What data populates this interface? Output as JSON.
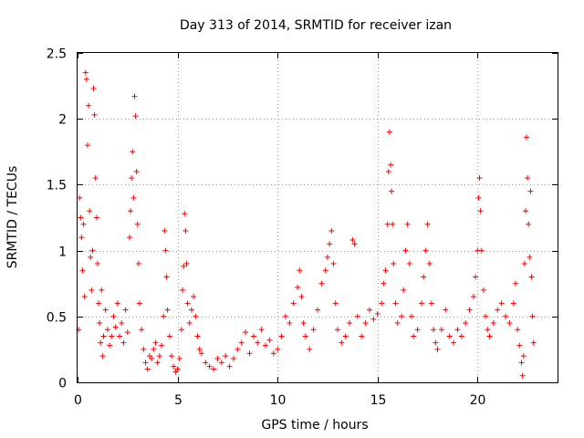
{
  "chart_data": {
    "type": "scatter",
    "title": "Day 313 of 2014, SRMTID for receiver izan",
    "xlabel": "GPS time / hours",
    "ylabel": "SRMTID / TECUs",
    "xlim": [
      0,
      24
    ],
    "ylim": [
      0,
      2.5
    ],
    "x_ticks": [
      0,
      5,
      10,
      15,
      20
    ],
    "y_ticks": [
      0,
      0.5,
      1,
      1.5,
      2,
      2.5
    ],
    "x_tick_labels": [
      "0",
      "5",
      "10",
      "15",
      "20"
    ],
    "y_tick_labels": [
      "0",
      "0.5",
      "1",
      "1.5",
      "2",
      "2.5"
    ],
    "grid": true,
    "marker": "+",
    "color": "#ff0000",
    "series": [
      {
        "name": "SRMTID",
        "points": [
          [
            0.05,
            0.4
          ],
          [
            0.1,
            1.4
          ],
          [
            0.15,
            1.25
          ],
          [
            0.2,
            1.1
          ],
          [
            0.25,
            0.85
          ],
          [
            0.3,
            1.2
          ],
          [
            0.35,
            0.65
          ],
          [
            0.4,
            2.35
          ],
          [
            0.45,
            2.3
          ],
          [
            0.5,
            1.8
          ],
          [
            0.55,
            2.1
          ],
          [
            0.6,
            1.3
          ],
          [
            0.65,
            0.95
          ],
          [
            0.7,
            0.7
          ],
          [
            0.75,
            1.0
          ],
          [
            0.8,
            2.23
          ],
          [
            0.85,
            2.03
          ],
          [
            0.9,
            1.55
          ],
          [
            0.95,
            1.25
          ],
          [
            1.0,
            0.9
          ],
          [
            1.05,
            0.6
          ],
          [
            1.1,
            0.45
          ],
          [
            1.15,
            0.3
          ],
          [
            1.2,
            0.7
          ],
          [
            1.25,
            0.2
          ],
          [
            1.3,
            0.35
          ],
          [
            1.4,
            0.55
          ],
          [
            1.5,
            0.4
          ],
          [
            1.6,
            0.28
          ],
          [
            1.7,
            0.35
          ],
          [
            1.8,
            0.5
          ],
          [
            1.9,
            0.42
          ],
          [
            2.0,
            0.6
          ],
          [
            2.1,
            0.35
          ],
          [
            2.2,
            0.45
          ],
          [
            2.3,
            0.3
          ],
          [
            2.4,
            0.55
          ],
          [
            2.5,
            0.38
          ],
          [
            2.6,
            1.1
          ],
          [
            2.65,
            1.3
          ],
          [
            2.7,
            1.55
          ],
          [
            2.75,
            1.75
          ],
          [
            2.8,
            1.4
          ],
          [
            2.85,
            2.17
          ],
          [
            2.9,
            2.02
          ],
          [
            2.95,
            1.6
          ],
          [
            3.0,
            1.2
          ],
          [
            3.05,
            0.9
          ],
          [
            3.1,
            0.6
          ],
          [
            3.2,
            0.4
          ],
          [
            3.3,
            0.25
          ],
          [
            3.4,
            0.15
          ],
          [
            3.5,
            0.1
          ],
          [
            3.6,
            0.2
          ],
          [
            3.7,
            0.18
          ],
          [
            3.8,
            0.25
          ],
          [
            3.9,
            0.3
          ],
          [
            4.0,
            0.15
          ],
          [
            4.1,
            0.2
          ],
          [
            4.2,
            0.28
          ],
          [
            4.3,
            0.5
          ],
          [
            4.35,
            1.15
          ],
          [
            4.4,
            1.0
          ],
          [
            4.45,
            0.8
          ],
          [
            4.5,
            0.55
          ],
          [
            4.6,
            0.35
          ],
          [
            4.7,
            0.2
          ],
          [
            4.8,
            0.12
          ],
          [
            4.9,
            0.08
          ],
          [
            5.0,
            0.1
          ],
          [
            5.1,
            0.18
          ],
          [
            5.2,
            0.4
          ],
          [
            5.25,
            0.7
          ],
          [
            5.3,
            0.88
          ],
          [
            5.35,
            1.28
          ],
          [
            5.4,
            1.15
          ],
          [
            5.45,
            0.9
          ],
          [
            5.5,
            0.6
          ],
          [
            5.6,
            0.45
          ],
          [
            5.7,
            0.55
          ],
          [
            5.8,
            0.65
          ],
          [
            5.9,
            0.5
          ],
          [
            6.0,
            0.35
          ],
          [
            6.1,
            0.25
          ],
          [
            6.2,
            0.22
          ],
          [
            6.4,
            0.15
          ],
          [
            6.6,
            0.12
          ],
          [
            6.8,
            0.1
          ],
          [
            7.0,
            0.18
          ],
          [
            7.2,
            0.15
          ],
          [
            7.4,
            0.2
          ],
          [
            7.6,
            0.12
          ],
          [
            7.8,
            0.18
          ],
          [
            8.0,
            0.25
          ],
          [
            8.2,
            0.3
          ],
          [
            8.4,
            0.38
          ],
          [
            8.6,
            0.22
          ],
          [
            8.8,
            0.35
          ],
          [
            9.0,
            0.3
          ],
          [
            9.2,
            0.4
          ],
          [
            9.4,
            0.28
          ],
          [
            9.6,
            0.32
          ],
          [
            9.8,
            0.22
          ],
          [
            10.0,
            0.25
          ],
          [
            10.2,
            0.35
          ],
          [
            10.4,
            0.5
          ],
          [
            10.6,
            0.45
          ],
          [
            10.8,
            0.6
          ],
          [
            11.0,
            0.72
          ],
          [
            11.1,
            0.85
          ],
          [
            11.2,
            0.65
          ],
          [
            11.3,
            0.45
          ],
          [
            11.4,
            0.35
          ],
          [
            11.6,
            0.25
          ],
          [
            11.8,
            0.4
          ],
          [
            12.0,
            0.55
          ],
          [
            12.2,
            0.75
          ],
          [
            12.4,
            0.85
          ],
          [
            12.5,
            0.95
          ],
          [
            12.6,
            1.05
          ],
          [
            12.7,
            1.15
          ],
          [
            12.8,
            0.9
          ],
          [
            12.9,
            0.6
          ],
          [
            13.0,
            0.4
          ],
          [
            13.2,
            0.3
          ],
          [
            13.4,
            0.35
          ],
          [
            13.6,
            0.45
          ],
          [
            13.75,
            1.08
          ],
          [
            13.85,
            1.05
          ],
          [
            14.0,
            0.5
          ],
          [
            14.2,
            0.35
          ],
          [
            14.4,
            0.45
          ],
          [
            14.6,
            0.55
          ],
          [
            14.8,
            0.48
          ],
          [
            15.0,
            0.52
          ],
          [
            15.2,
            0.6
          ],
          [
            15.3,
            0.75
          ],
          [
            15.4,
            0.85
          ],
          [
            15.5,
            1.2
          ],
          [
            15.55,
            1.6
          ],
          [
            15.6,
            1.9
          ],
          [
            15.65,
            1.65
          ],
          [
            15.7,
            1.45
          ],
          [
            15.75,
            1.2
          ],
          [
            15.8,
            0.9
          ],
          [
            15.9,
            0.6
          ],
          [
            16.0,
            0.45
          ],
          [
            16.2,
            0.5
          ],
          [
            16.3,
            0.7
          ],
          [
            16.4,
            1.0
          ],
          [
            16.5,
            1.2
          ],
          [
            16.6,
            0.9
          ],
          [
            16.7,
            0.5
          ],
          [
            16.8,
            0.35
          ],
          [
            17.0,
            0.4
          ],
          [
            17.2,
            0.6
          ],
          [
            17.3,
            0.8
          ],
          [
            17.4,
            1.0
          ],
          [
            17.5,
            1.2
          ],
          [
            17.6,
            0.9
          ],
          [
            17.7,
            0.6
          ],
          [
            17.8,
            0.4
          ],
          [
            17.9,
            0.3
          ],
          [
            18.0,
            0.25
          ],
          [
            18.2,
            0.4
          ],
          [
            18.4,
            0.55
          ],
          [
            18.6,
            0.35
          ],
          [
            18.8,
            0.3
          ],
          [
            19.0,
            0.4
          ],
          [
            19.2,
            0.35
          ],
          [
            19.4,
            0.45
          ],
          [
            19.6,
            0.55
          ],
          [
            19.8,
            0.65
          ],
          [
            19.9,
            0.8
          ],
          [
            20.0,
            1.0
          ],
          [
            20.05,
            1.4
          ],
          [
            20.1,
            1.55
          ],
          [
            20.15,
            1.3
          ],
          [
            20.2,
            1.0
          ],
          [
            20.3,
            0.7
          ],
          [
            20.4,
            0.5
          ],
          [
            20.5,
            0.4
          ],
          [
            20.6,
            0.35
          ],
          [
            20.8,
            0.45
          ],
          [
            21.0,
            0.55
          ],
          [
            21.2,
            0.6
          ],
          [
            21.4,
            0.5
          ],
          [
            21.6,
            0.45
          ],
          [
            21.8,
            0.6
          ],
          [
            21.9,
            0.75
          ],
          [
            22.0,
            0.4
          ],
          [
            22.1,
            0.28
          ],
          [
            22.2,
            0.15
          ],
          [
            22.25,
            0.05
          ],
          [
            22.3,
            0.2
          ],
          [
            22.35,
            0.9
          ],
          [
            22.4,
            1.3
          ],
          [
            22.45,
            1.86
          ],
          [
            22.5,
            1.55
          ],
          [
            22.55,
            1.2
          ],
          [
            22.6,
            0.95
          ],
          [
            22.65,
            1.45
          ],
          [
            22.7,
            0.8
          ],
          [
            22.75,
            0.5
          ],
          [
            22.8,
            0.3
          ]
        ]
      }
    ]
  }
}
